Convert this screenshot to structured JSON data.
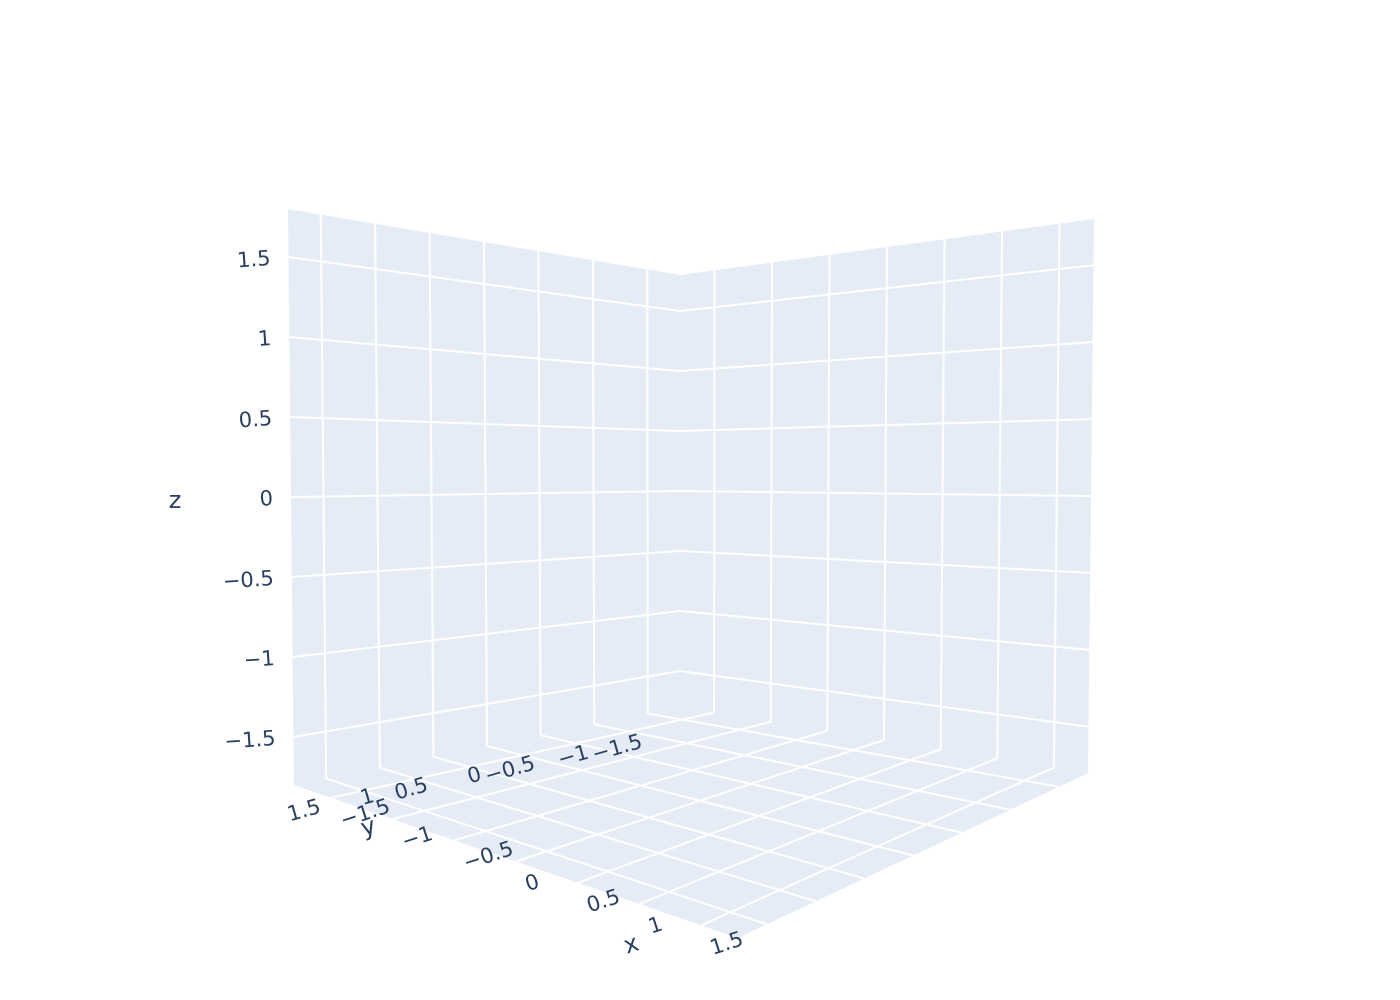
{
  "chart_data": {
    "type": "scatter3d",
    "series": [],
    "x": {
      "title": "x",
      "range": [
        -1.8,
        1.8
      ],
      "ticks": [
        -1.5,
        -1,
        -0.5,
        0,
        0.5,
        1,
        1.5
      ],
      "tick_labels": [
        "−1.5",
        "−1",
        "−0.5",
        "0",
        "0.5",
        "1",
        "1.5"
      ]
    },
    "y": {
      "title": "y",
      "range": [
        -1.8,
        1.8
      ],
      "ticks": [
        -1.5,
        -1,
        -0.5,
        0,
        0.5,
        1,
        1.5
      ],
      "tick_labels": [
        "−1.5",
        "−1",
        "−0.5",
        "0",
        "0.5",
        "1",
        "1.5"
      ]
    },
    "z": {
      "title": "z",
      "range": [
        -1.8,
        1.8
      ],
      "ticks": [
        -1.5,
        -1,
        -0.5,
        0,
        0.5,
        1,
        1.5
      ],
      "tick_labels": [
        "−1.5",
        "−1",
        "−0.5",
        "0",
        "0.5",
        "1",
        "1.5"
      ]
    },
    "grid": true,
    "background_color": "#e5ecf6",
    "grid_color": "#ffffff",
    "text_color": "#2a3f5f"
  }
}
